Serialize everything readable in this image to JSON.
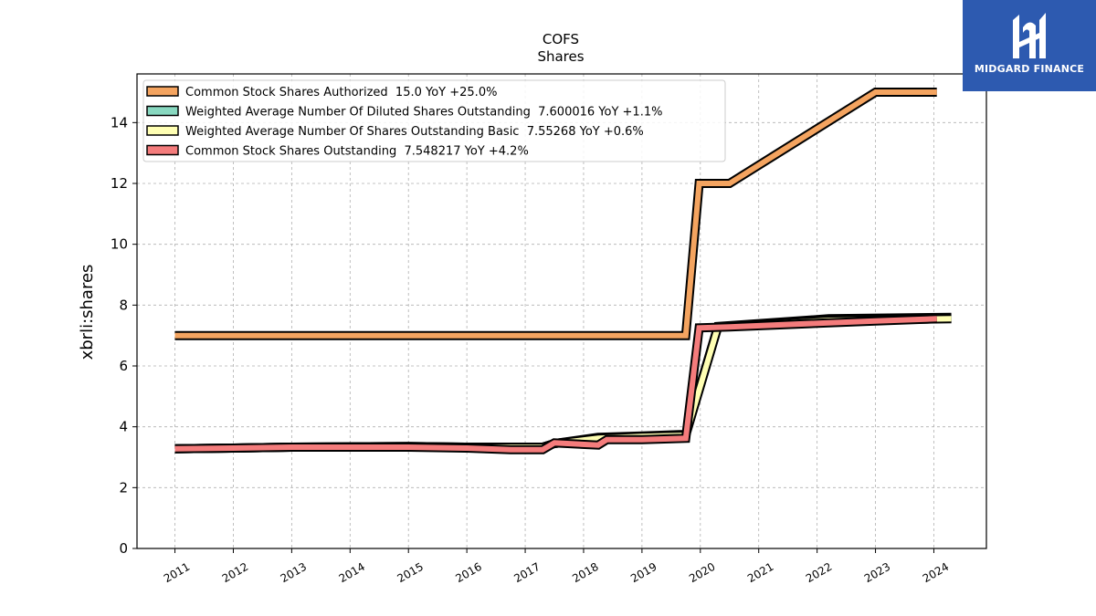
{
  "chart_data": {
    "type": "line",
    "title": "COFS",
    "subtitle": "Shares",
    "ylabel": "xbrli:shares",
    "xlabel": "",
    "xlim": [
      2010.35,
      2024.9
    ],
    "ylim": [
      0,
      15.6
    ],
    "grid": true,
    "legend_position": "top-left",
    "x_ticks": [
      "2011",
      "2012",
      "2013",
      "2014",
      "2015",
      "2016",
      "2017",
      "2018",
      "2019",
      "2020",
      "2021",
      "2022",
      "2023",
      "2024"
    ],
    "y_ticks": [
      "0",
      "2",
      "4",
      "6",
      "8",
      "10",
      "12",
      "14"
    ],
    "series": [
      {
        "name": "Common Stock Shares Authorized  15.0 YoY +25.0%",
        "color": "#f4a460",
        "points": [
          [
            2011.0,
            7.0
          ],
          [
            2019.75,
            7.0
          ],
          [
            2019.98,
            12.0
          ],
          [
            2020.5,
            12.0
          ],
          [
            2023.0,
            15.0
          ],
          [
            2024.05,
            15.0
          ]
        ]
      },
      {
        "name": "Weighted Average Number Of Diluted Shares Outstanding  7.600016 YoY +1.1%",
        "color": "#88d8c0",
        "points": [
          [
            2011.0,
            3.28
          ],
          [
            2012.0,
            3.3
          ],
          [
            2013.0,
            3.33
          ],
          [
            2015.0,
            3.35
          ],
          [
            2016.0,
            3.33
          ],
          [
            2016.75,
            3.33
          ],
          [
            2017.3,
            3.33
          ],
          [
            2017.5,
            3.45
          ],
          [
            2018.25,
            3.65
          ],
          [
            2019.0,
            3.7
          ],
          [
            2019.75,
            3.75
          ],
          [
            2020.3,
            7.3
          ],
          [
            2020.7,
            7.35
          ],
          [
            2022.2,
            7.55
          ],
          [
            2024.3,
            7.6
          ]
        ]
      },
      {
        "name": "Weighted Average Number Of Shares Outstanding Basic  7.55268 YoY +0.6%",
        "color": "#ffffb3",
        "points": [
          [
            2011.0,
            3.28
          ],
          [
            2012.0,
            3.3
          ],
          [
            2013.0,
            3.33
          ],
          [
            2015.0,
            3.35
          ],
          [
            2016.0,
            3.33
          ],
          [
            2016.75,
            3.33
          ],
          [
            2017.3,
            3.33
          ],
          [
            2017.5,
            3.45
          ],
          [
            2018.25,
            3.62
          ],
          [
            2019.0,
            3.68
          ],
          [
            2019.75,
            3.72
          ],
          [
            2020.3,
            7.28
          ],
          [
            2020.7,
            7.33
          ],
          [
            2022.2,
            7.5
          ],
          [
            2024.3,
            7.55
          ]
        ]
      },
      {
        "name": "Common Stock Shares Outstanding  7.548217 YoY +4.2%",
        "color": "#f47c7c",
        "points": [
          [
            2011.0,
            3.28
          ],
          [
            2012.0,
            3.3
          ],
          [
            2013.0,
            3.33
          ],
          [
            2015.0,
            3.33
          ],
          [
            2016.0,
            3.3
          ],
          [
            2016.75,
            3.25
          ],
          [
            2017.3,
            3.25
          ],
          [
            2017.5,
            3.47
          ],
          [
            2018.25,
            3.4
          ],
          [
            2018.4,
            3.58
          ],
          [
            2019.0,
            3.58
          ],
          [
            2019.75,
            3.62
          ],
          [
            2019.98,
            7.25
          ],
          [
            2020.5,
            7.28
          ],
          [
            2022.2,
            7.42
          ],
          [
            2023.0,
            7.48
          ],
          [
            2024.05,
            7.55
          ]
        ]
      }
    ]
  },
  "logo": {
    "text": "MIDGARD FINANCE",
    "color": "#2d5ab0"
  }
}
